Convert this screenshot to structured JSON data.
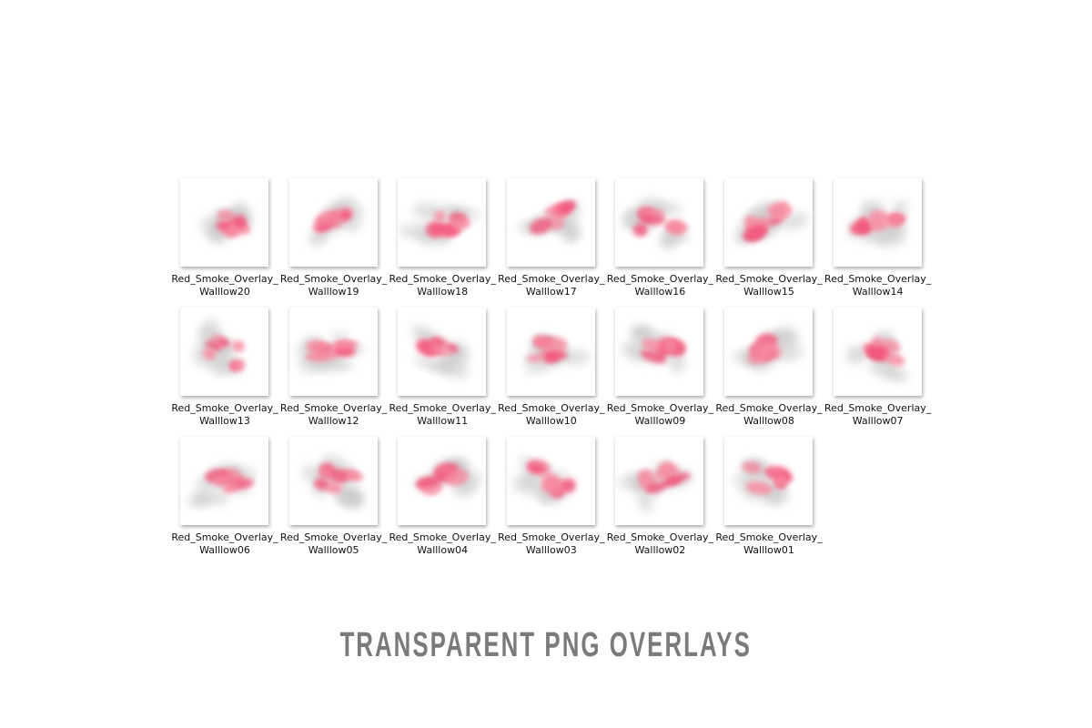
{
  "files": [
    {
      "line1": "Red_Smoke_Overlay_",
      "line2": "Walllow20"
    },
    {
      "line1": "Red_Smoke_Overlay_",
      "line2": "Walllow19"
    },
    {
      "line1": "Red_Smoke_Overlay_",
      "line2": "Walllow18"
    },
    {
      "line1": "Red_Smoke_Overlay_",
      "line2": "Walllow17"
    },
    {
      "line1": "Red_Smoke_Overlay_",
      "line2": "Walllow16"
    },
    {
      "line1": "Red_Smoke_Overlay_",
      "line2": "Walllow15"
    },
    {
      "line1": "Red_Smoke_Overlay_",
      "line2": "Walllow14"
    },
    {
      "line1": "Red_Smoke_Overlay_",
      "line2": "Walllow13"
    },
    {
      "line1": "Red_Smoke_Overlay_",
      "line2": "Walllow12"
    },
    {
      "line1": "Red_Smoke_Overlay_",
      "line2": "Walllow11"
    },
    {
      "line1": "Red_Smoke_Overlay_",
      "line2": "Walllow10"
    },
    {
      "line1": "Red_Smoke_Overlay_",
      "line2": "Walllow09"
    },
    {
      "line1": "Red_Smoke_Overlay_",
      "line2": "Walllow08"
    },
    {
      "line1": "Red_Smoke_Overlay_",
      "line2": "Walllow07"
    },
    {
      "line1": "Red_Smoke_Overlay_",
      "line2": "Walllow06"
    },
    {
      "line1": "Red_Smoke_Overlay_",
      "line2": "Walllow05"
    },
    {
      "line1": "Red_Smoke_Overlay_",
      "line2": "Walllow04"
    },
    {
      "line1": "Red_Smoke_Overlay_",
      "line2": "Walllow03"
    },
    {
      "line1": "Red_Smoke_Overlay_",
      "line2": "Walllow02"
    },
    {
      "line1": "Red_Smoke_Overlay_",
      "line2": "Walllow01"
    }
  ],
  "footer": {
    "title": "TRANSPARENT PNG OVERLAYS"
  }
}
